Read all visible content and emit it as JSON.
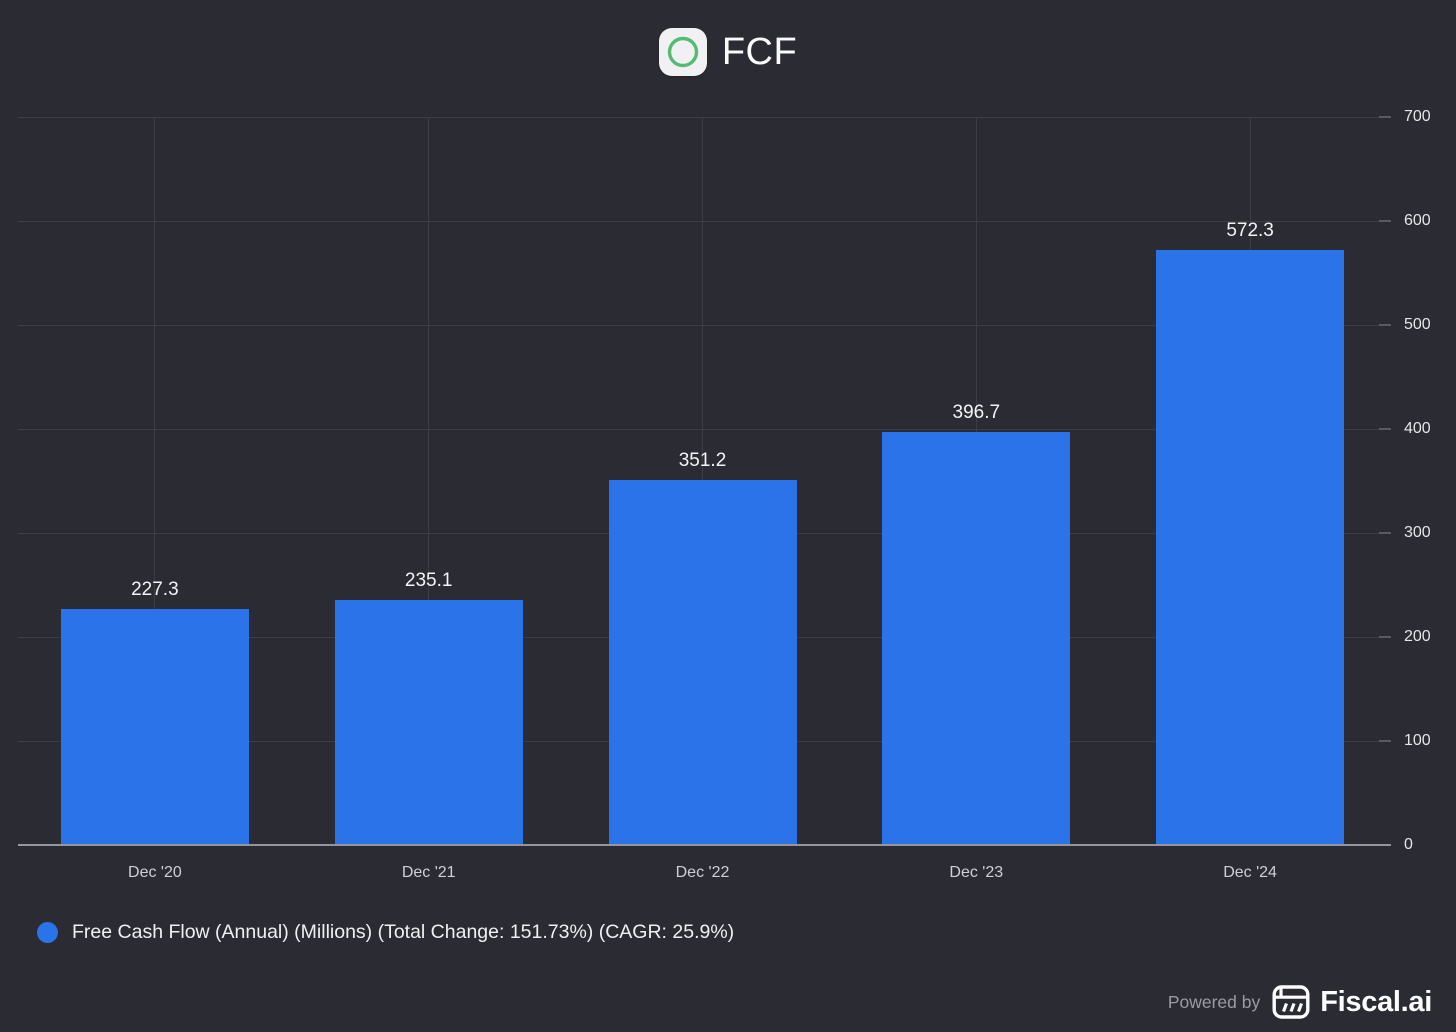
{
  "header": {
    "title": "FCF",
    "icon": "green-circle-icon"
  },
  "chart_data": {
    "type": "bar",
    "title": "FCF",
    "categories": [
      "Dec '20",
      "Dec '21",
      "Dec '22",
      "Dec '23",
      "Dec '24"
    ],
    "values": [
      227.3,
      235.1,
      351.2,
      396.7,
      572.3
    ],
    "value_labels": [
      "227.3",
      "235.1",
      "351.2",
      "396.7",
      "572.3"
    ],
    "series_name": "Free Cash Flow (Annual) (Millions)",
    "xlabel": "",
    "ylabel": "",
    "ylim": [
      0,
      700
    ],
    "y_ticks": [
      0,
      100,
      200,
      300,
      400,
      500,
      600,
      700
    ],
    "y_axis_side": "right",
    "grid": true,
    "legend_position": "bottom-left",
    "bar_color": "#2a73e8"
  },
  "legend": {
    "label": "Free Cash Flow (Annual) (Millions) (Total Change: 151.73%) (CAGR: 25.9%)",
    "marker_color": "#2a73e8"
  },
  "footer": {
    "powered_by": "Powered by",
    "brand": "Fiscal.ai"
  },
  "colors": {
    "background": "#2b2b33",
    "bar": "#2a73e8",
    "gridline": "#3d3d46",
    "axis_line": "#95959c",
    "y_tick_label": "#e5e6e9",
    "x_tick_label": "#ced0d4",
    "value_label": "#f3f4f6",
    "title_text": "#fafafa",
    "icon_ring_green": "#54ba74",
    "icon_background": "#f1f1f4",
    "legend_text": "#eef0f2",
    "powered_by_text": "#9b9ba3",
    "brand_text": "#fdfdfe"
  }
}
